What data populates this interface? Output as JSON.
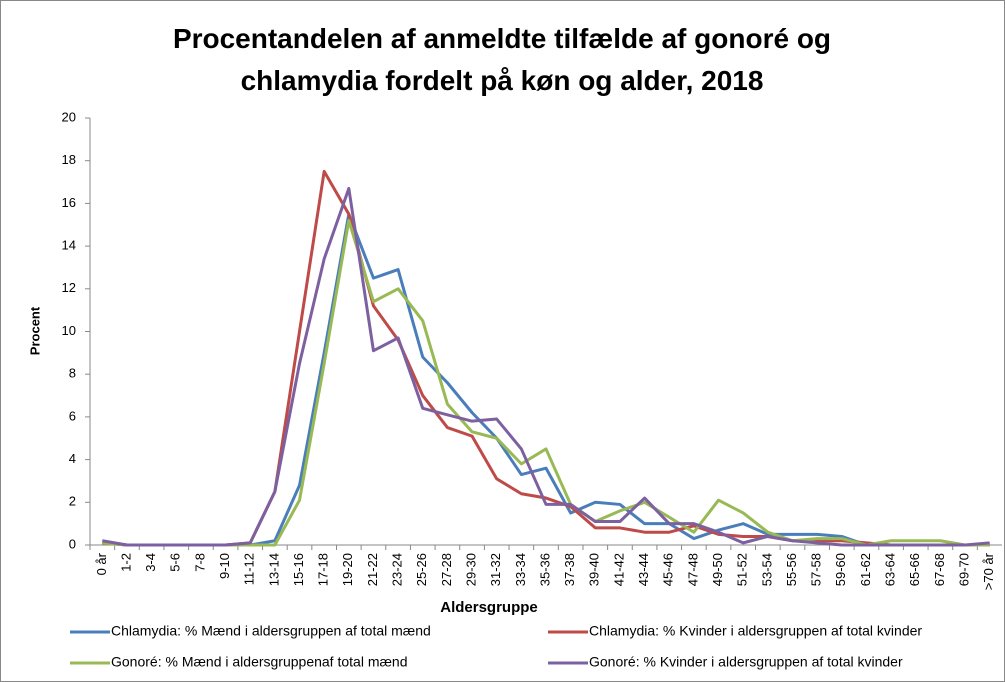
{
  "chart_data": {
    "type": "line",
    "title": "Procentandelen af anmeldte tilfælde af gonoré og chlamydia fordelt på køn og alder, 2018",
    "x_label": "Aldersgruppe",
    "y_label": "Procent",
    "categories": [
      "0 år",
      "1-2",
      "3-4",
      "5-6",
      "7-8",
      "9-10",
      "11-12",
      "13-14",
      "15-16",
      "17-18",
      "19-20",
      "21-22",
      "23-24",
      "25-26",
      "27-28",
      "29-30",
      "31-32",
      "33-34",
      "35-36",
      "37-38",
      "39-40",
      "41-42",
      "43-44",
      "45-46",
      "47-48",
      "49-50",
      "51-52",
      "53-54",
      "55-56",
      "57-58",
      "59-60",
      "61-62",
      "63-64",
      "65-66",
      "67-68",
      "69-70",
      ">70 år"
    ],
    "series": [
      {
        "name": "Chlamydia: % Mænd i aldersgruppen af total mænd",
        "color": "#4a7ebb",
        "values": [
          0.1,
          0,
          0,
          0,
          0,
          0,
          0,
          0.2,
          2.8,
          9,
          15.5,
          12.5,
          12.9,
          8.8,
          7.6,
          6.2,
          5.0,
          3.3,
          3.6,
          1.5,
          2.0,
          1.9,
          1.0,
          1.0,
          0.3,
          0.7,
          1.0,
          0.5,
          0.5,
          0.5,
          0.4,
          0,
          0,
          0,
          0,
          0,
          0
        ]
      },
      {
        "name": "Chlamydia: % Kvinder i aldersgruppen af total kvinder",
        "color": "#be4b48",
        "values": [
          0.1,
          0,
          0,
          0,
          0,
          0,
          0.1,
          2.5,
          10,
          17.5,
          15.5,
          11.2,
          9.6,
          7.0,
          5.5,
          5.1,
          3.1,
          2.4,
          2.2,
          1.8,
          0.8,
          0.8,
          0.6,
          0.6,
          0.9,
          0.5,
          0.4,
          0.4,
          0.2,
          0.2,
          0.2,
          0.1,
          0,
          0,
          0,
          0,
          0
        ]
      },
      {
        "name": "Gonoré: % Mænd i aldersgruppenaf total mænd",
        "color": "#98b954",
        "values": [
          0.1,
          0,
          0,
          0,
          0,
          0,
          0,
          0,
          2.1,
          8.5,
          15.2,
          11.4,
          12.0,
          10.5,
          6.6,
          5.3,
          5.0,
          3.8,
          4.5,
          1.9,
          1.1,
          1.6,
          2.0,
          1.3,
          0.6,
          2.1,
          1.5,
          0.6,
          0.2,
          0.3,
          0.3,
          0,
          0.2,
          0.2,
          0.2,
          0,
          0
        ]
      },
      {
        "name": "Gonoré: % Kvinder i aldersgruppen af total kvinder",
        "color": "#7d60a0",
        "values": [
          0.2,
          0,
          0,
          0,
          0,
          0,
          0.1,
          2.5,
          8.5,
          13.4,
          16.7,
          9.1,
          9.7,
          6.4,
          6.1,
          5.8,
          5.9,
          4.5,
          1.9,
          1.9,
          1.1,
          1.1,
          2.2,
          1.0,
          1.0,
          0.6,
          0.1,
          0.4,
          0.2,
          0.1,
          0,
          0,
          0,
          0,
          0,
          0,
          0.1
        ]
      }
    ],
    "ylim": [
      0,
      20
    ],
    "yticks": [
      0,
      2,
      4,
      6,
      8,
      10,
      12,
      14,
      16,
      18,
      20
    ],
    "grid": false
  }
}
